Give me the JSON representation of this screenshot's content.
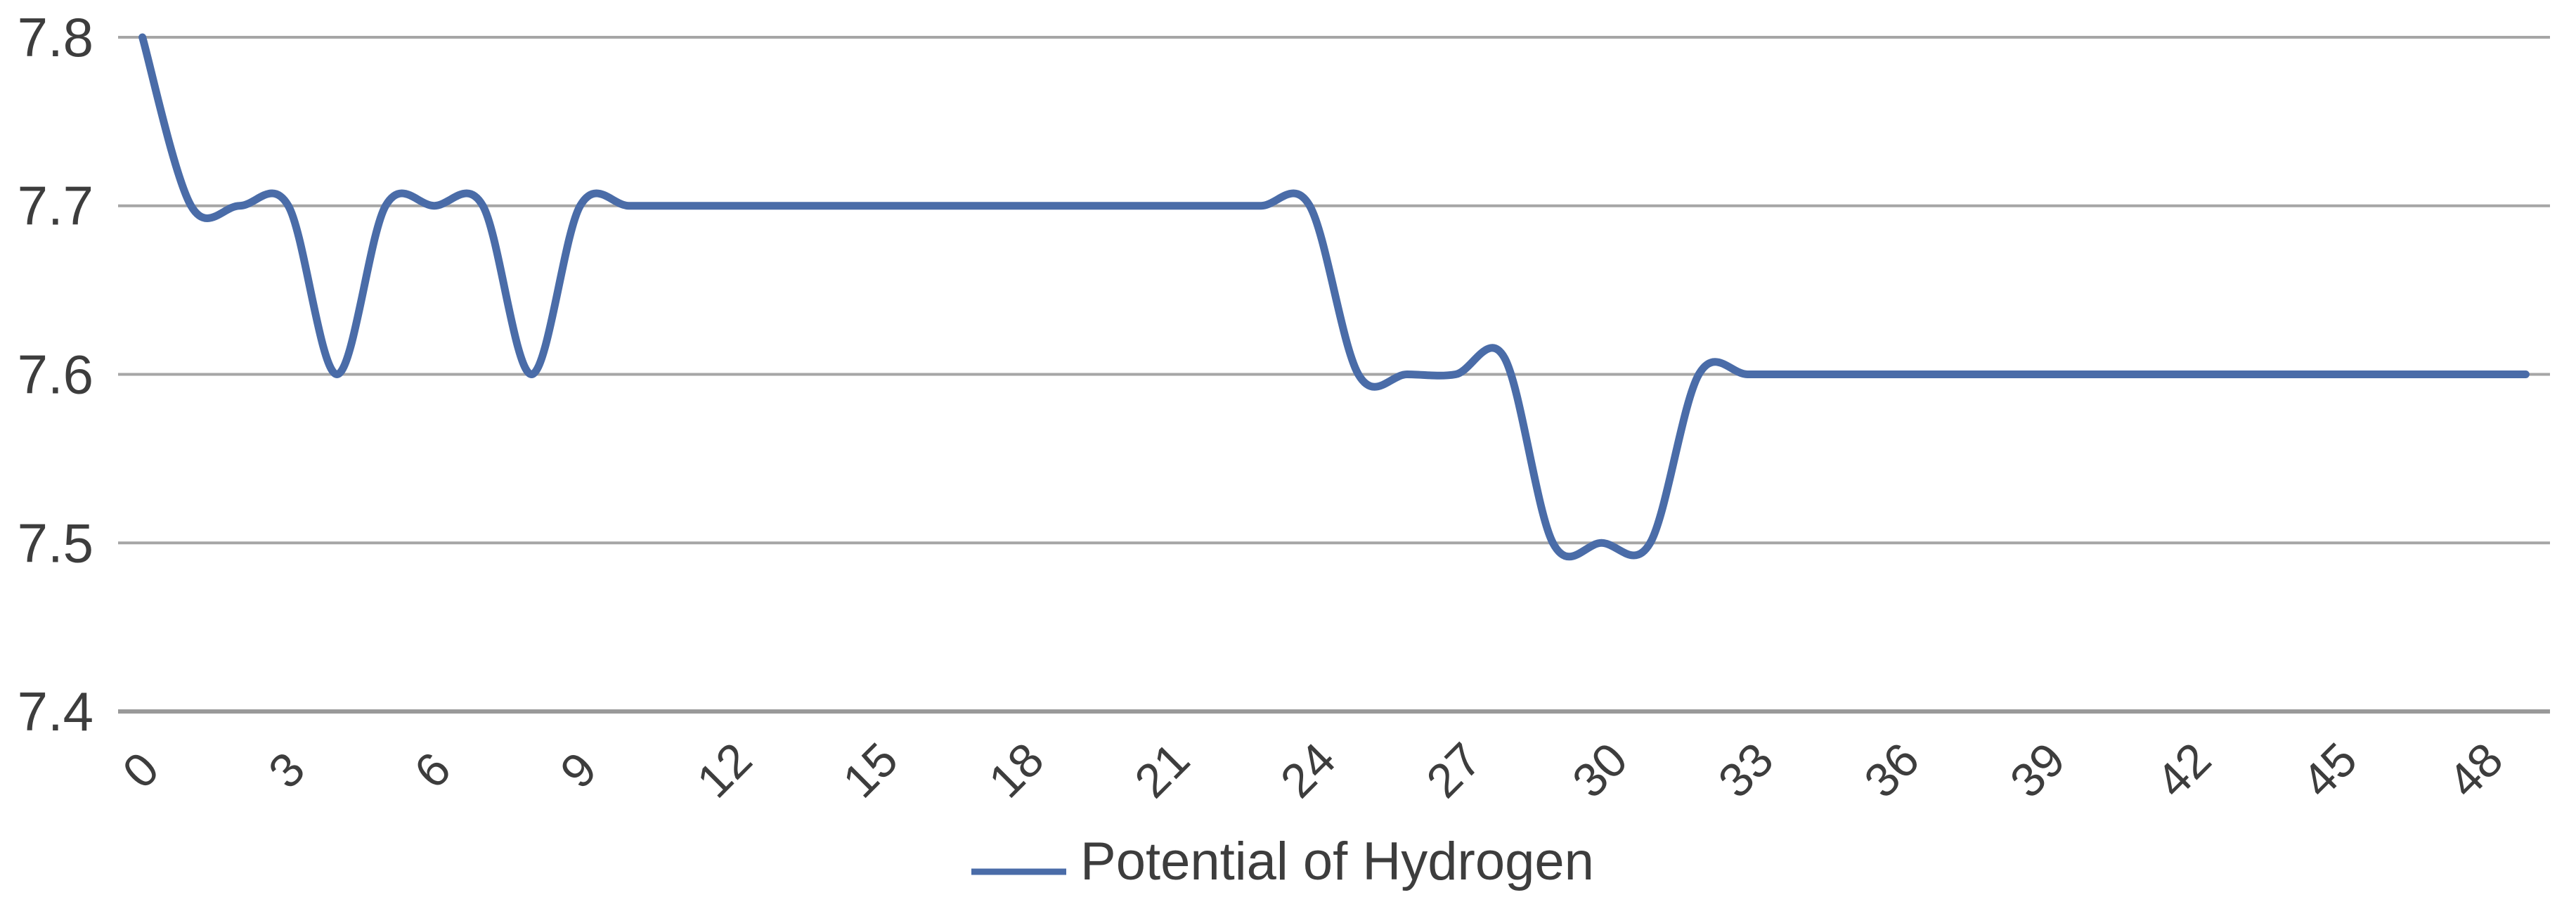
{
  "chart_data": {
    "type": "line",
    "smooth": true,
    "title": "",
    "xlabel": "",
    "ylabel": "",
    "x": [
      0,
      1,
      2,
      3,
      4,
      5,
      6,
      7,
      8,
      9,
      10,
      11,
      12,
      13,
      14,
      15,
      16,
      17,
      18,
      19,
      20,
      21,
      22,
      23,
      24,
      25,
      26,
      27,
      28,
      29,
      30,
      31,
      32,
      33,
      34,
      35,
      36,
      37,
      38,
      39,
      40,
      41,
      42,
      43,
      44,
      45,
      46,
      47,
      48,
      49
    ],
    "series": [
      {
        "name": "Potential of Hydrogen",
        "color": "#4a6ca8",
        "values": [
          7.8,
          7.7,
          7.7,
          7.7,
          7.6,
          7.7,
          7.7,
          7.7,
          7.6,
          7.7,
          7.7,
          7.7,
          7.7,
          7.7,
          7.7,
          7.7,
          7.7,
          7.7,
          7.7,
          7.7,
          7.7,
          7.7,
          7.7,
          7.7,
          7.7,
          7.6,
          7.6,
          7.6,
          7.61,
          7.5,
          7.5,
          7.5,
          7.6,
          7.6,
          7.6,
          7.6,
          7.6,
          7.6,
          7.6,
          7.6,
          7.6,
          7.6,
          7.6,
          7.6,
          7.6,
          7.6,
          7.6,
          7.6,
          7.6,
          7.6
        ]
      }
    ],
    "x_tick_labels": [
      "0",
      "3",
      "6",
      "9",
      "12",
      "15",
      "18",
      "21",
      "24",
      "27",
      "30",
      "33",
      "36",
      "39",
      "42",
      "45",
      "48"
    ],
    "x_tick_step": 3,
    "x_label_rotation": -45,
    "y_tick_labels": [
      "7.8",
      "7.7",
      "7.6",
      "7.5",
      "7.4"
    ],
    "y_ticks": [
      7.8,
      7.7,
      7.6,
      7.5,
      7.4
    ],
    "ylim": [
      7.4,
      7.8
    ],
    "grid": "horizontal",
    "legend_position": "bottom-center",
    "gridline_color": "#a6a6a6",
    "axis_line_color": "#999999",
    "label_color": "#3d3d3d",
    "background_color": "#ffffff"
  }
}
